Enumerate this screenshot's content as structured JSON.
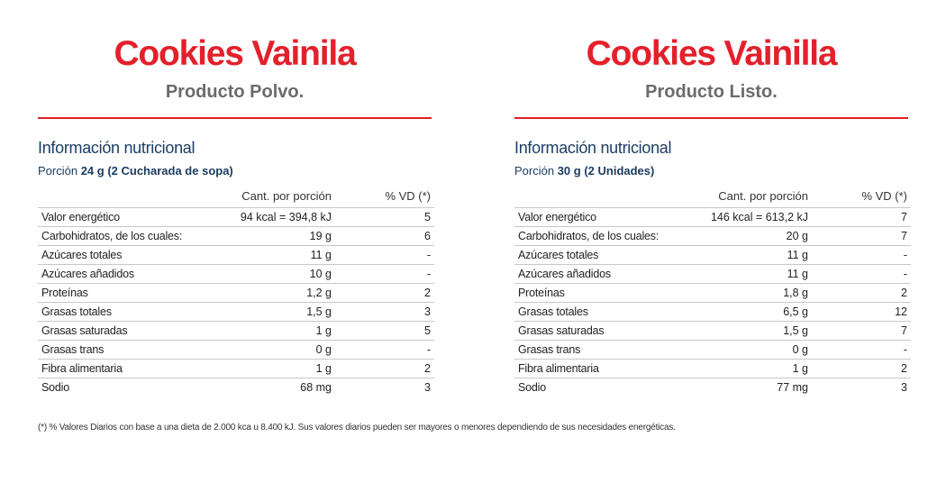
{
  "panels": [
    {
      "title": "Cookies Vainila",
      "subtitle": "Producto Polvo.",
      "section_title": "Información nutricional",
      "portion_label": "Porción",
      "portion_value": "24 g (2 Cucharada de sopa)",
      "header_amount": "Cant. por porción",
      "header_vd": "% VD (*)",
      "rows": [
        {
          "name": "Valor energético",
          "amount": "94 kcal = 394,8 kJ",
          "vd": "5"
        },
        {
          "name": "Carbohidratos, de los cuales:",
          "amount": "19 g",
          "vd": "6"
        },
        {
          "name": "Azúcares totales",
          "amount": "11 g",
          "vd": "-"
        },
        {
          "name": "Azúcares añadidos",
          "amount": "10 g",
          "vd": "-"
        },
        {
          "name": "Proteínas",
          "amount": "1,2 g",
          "vd": "2"
        },
        {
          "name": "Grasas totales",
          "amount": "1,5 g",
          "vd": "3"
        },
        {
          "name": "Grasas saturadas",
          "amount": "1 g",
          "vd": "5"
        },
        {
          "name": "Grasas trans",
          "amount": "0 g",
          "vd": "-"
        },
        {
          "name": "Fibra alimentaria",
          "amount": "1 g",
          "vd": "2"
        },
        {
          "name": "Sodio",
          "amount": "68 mg",
          "vd": "3"
        }
      ]
    },
    {
      "title": "Cookies Vainilla",
      "subtitle": "Producto Listo.",
      "section_title": "Información nutricional",
      "portion_label": "Porción",
      "portion_value": "30 g (2 Unidades)",
      "header_amount": "Cant. por porción",
      "header_vd": "% VD (*)",
      "rows": [
        {
          "name": "Valor energético",
          "amount": "146 kcal = 613,2 kJ",
          "vd": "7"
        },
        {
          "name": "Carbohidratos, de los cuales:",
          "amount": "20 g",
          "vd": "7"
        },
        {
          "name": "Azúcares totales",
          "amount": "11 g",
          "vd": "-"
        },
        {
          "name": "Azúcares añadidos",
          "amount": "11 g",
          "vd": "-"
        },
        {
          "name": "Proteínas",
          "amount": "1,8 g",
          "vd": "2"
        },
        {
          "name": "Grasas totales",
          "amount": "6,5 g",
          "vd": "12"
        },
        {
          "name": "Grasas saturadas",
          "amount": "1,5 g",
          "vd": "7"
        },
        {
          "name": "Grasas trans",
          "amount": "0 g",
          "vd": "-"
        },
        {
          "name": "Fibra alimentaria",
          "amount": "1 g",
          "vd": "2"
        },
        {
          "name": "Sodio",
          "amount": "77 mg",
          "vd": "3"
        }
      ]
    }
  ],
  "footnote": "(*) % Valores Diarios con base a una dieta de 2.000 kca u 8.400 kJ. Sus valores diarios pueden ser mayores o menores dependiendo de sus necesidades energéticas.",
  "colors": {
    "title_red": "#e3202b",
    "section_blue": "#1c3d63",
    "subtitle_gray": "#6b6b6b"
  }
}
